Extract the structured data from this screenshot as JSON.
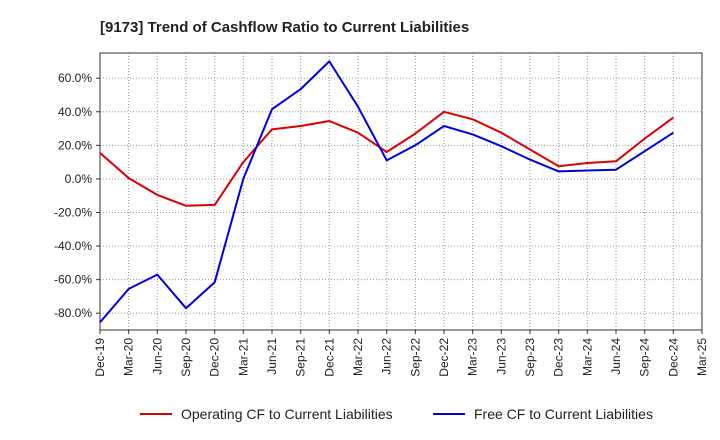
{
  "chart_data": {
    "type": "line",
    "title": "[9173]  Trend of Cashflow Ratio to Current Liabilities",
    "xlabel": "",
    "ylabel": "",
    "x": [
      "Dec-19",
      "Mar-20",
      "Jun-20",
      "Sep-20",
      "Dec-20",
      "Mar-21",
      "Jun-21",
      "Sep-21",
      "Dec-21",
      "Mar-22",
      "Jun-22",
      "Sep-22",
      "Dec-22",
      "Mar-23",
      "Jun-23",
      "Sep-23",
      "Dec-23",
      "Mar-24",
      "Jun-24",
      "Sep-24",
      "Dec-24",
      "Mar-25"
    ],
    "ylim": [
      -90,
      75
    ],
    "yticks": [
      -80,
      -60,
      -40,
      -20,
      0,
      20,
      40,
      60
    ],
    "ytick_labels": [
      "-80.0%",
      "-60.0%",
      "-40.0%",
      "-20.0%",
      "0.0%",
      "20.0%",
      "40.0%",
      "60.0%"
    ],
    "grid": true,
    "legend_position": "bottom",
    "series": [
      {
        "name": "Operating CF to Current Liabilities",
        "color": "#dd0000",
        "values": [
          15.5,
          0.5,
          -9.5,
          -16.0,
          -15.5,
          10.0,
          29.5,
          31.5,
          34.5,
          27.5,
          16.0,
          27.0,
          40.0,
          35.5,
          27.5,
          17.5,
          7.5,
          9.5,
          10.5,
          24.0,
          36.5,
          null
        ]
      },
      {
        "name": "Free CF to Current Liabilities",
        "color": "#0000dd",
        "values": [
          -85.5,
          -65.5,
          -57.0,
          -77.0,
          -61.5,
          0.0,
          41.5,
          53.5,
          70.0,
          43.0,
          11.0,
          20.0,
          31.5,
          26.5,
          19.5,
          11.5,
          4.5,
          5.0,
          5.5,
          16.5,
          27.5,
          null
        ]
      }
    ]
  }
}
